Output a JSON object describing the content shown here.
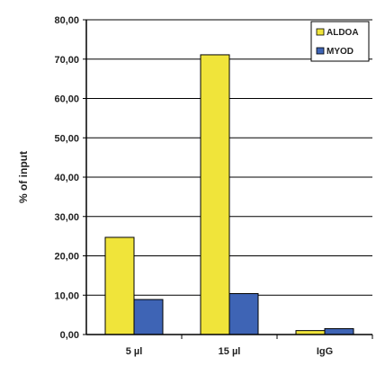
{
  "chart_data": {
    "type": "bar",
    "title": "",
    "xlabel": "",
    "ylabel": "% of input",
    "categories": [
      "5 µl",
      "15 µl",
      "IgG"
    ],
    "series": [
      {
        "name": "ALDOA",
        "values": [
          24.7,
          71.1,
          1.0
        ],
        "color": "#f0e43a"
      },
      {
        "name": "MYOD",
        "values": [
          8.9,
          10.4,
          1.5
        ],
        "color": "#3e64b5"
      }
    ],
    "ylim": [
      0,
      80
    ],
    "yticks": [
      "0,00",
      "10,00",
      "20,00",
      "30,00",
      "40,00",
      "50,00",
      "60,00",
      "70,00",
      "80,00"
    ],
    "grid": true,
    "legend_position": "top-right"
  }
}
